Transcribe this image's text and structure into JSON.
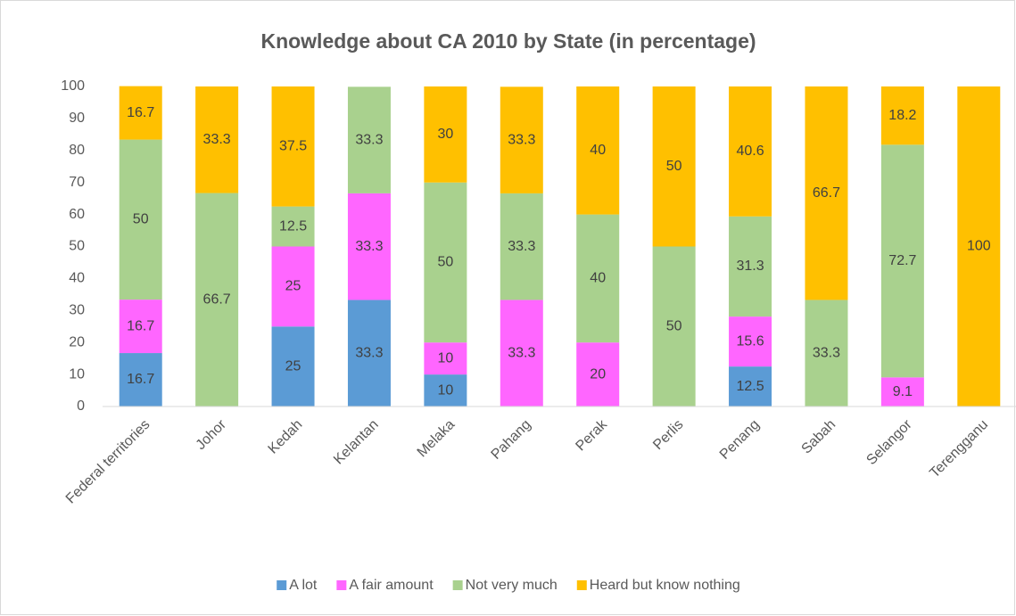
{
  "chart_data": {
    "type": "stacked_bar",
    "title": "Knowledge about CA 2010 by State (in percentage)",
    "categories": [
      "Federal territories",
      "Johor",
      "Kedah",
      "Kelantan",
      "Melaka",
      "Pahang",
      "Perak",
      "Perlis",
      "Penang",
      "Sabah",
      "Selangor",
      "Terengganu"
    ],
    "series": [
      {
        "name": "A lot",
        "color": "#5b9bd5",
        "values": [
          16.7,
          0,
          25,
          33.3,
          10,
          0,
          0,
          0,
          12.5,
          0,
          0,
          0
        ]
      },
      {
        "name": "A fair amount",
        "color": "#ff66ff",
        "values": [
          16.7,
          0,
          25,
          33.3,
          10,
          33.3,
          20,
          0,
          15.6,
          0,
          9.1,
          0
        ]
      },
      {
        "name": "Not very much",
        "color": "#a9d18e",
        "values": [
          50,
          66.7,
          12.5,
          33.3,
          50,
          33.3,
          40,
          50,
          31.3,
          33.3,
          72.7,
          0
        ]
      },
      {
        "name": "Heard but know nothing",
        "color": "#ffc000",
        "values": [
          16.7,
          33.3,
          37.5,
          0,
          30,
          33.3,
          40,
          50,
          40.6,
          66.7,
          18.2,
          100
        ]
      }
    ],
    "ylim": [
      0,
      100
    ],
    "yticks": [
      0,
      10,
      20,
      30,
      40,
      50,
      60,
      70,
      80,
      90,
      100
    ],
    "grid": false,
    "legend": "bottom"
  }
}
